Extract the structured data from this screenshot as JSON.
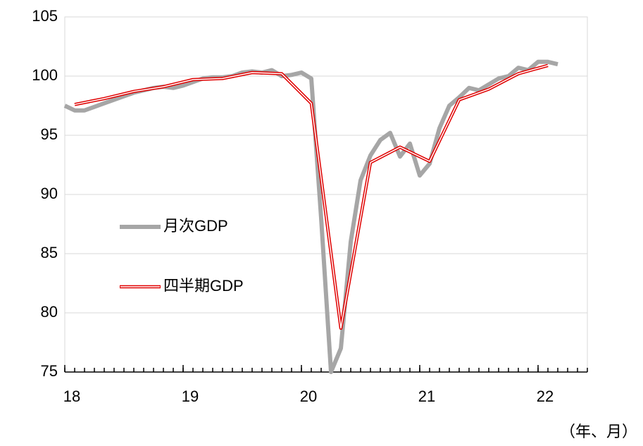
{
  "chart_data": {
    "type": "line",
    "unit_note": "（年、月）",
    "xlim": [
      0,
      53
    ],
    "xticks": [
      {
        "value": 0,
        "label": "18"
      },
      {
        "value": 12,
        "label": "19"
      },
      {
        "value": 24,
        "label": "20"
      },
      {
        "value": 36,
        "label": "21"
      },
      {
        "value": 48,
        "label": "22"
      }
    ],
    "ylim": [
      75,
      105
    ],
    "yticks": [
      75,
      80,
      85,
      90,
      95,
      100,
      105
    ],
    "grid": true,
    "series": [
      {
        "name": "月次GDP",
        "color": "#a6a6a6",
        "x": [
          0,
          1,
          2,
          3,
          4,
          5,
          6,
          7,
          8,
          9,
          10,
          11,
          12,
          13,
          14,
          15,
          16,
          17,
          18,
          19,
          20,
          21,
          22,
          23,
          24,
          25,
          26,
          27,
          28,
          29,
          30,
          31,
          32,
          33,
          34,
          35,
          36,
          37,
          38,
          39,
          40,
          41,
          42,
          43,
          44,
          45,
          46,
          47,
          48,
          49,
          50
        ],
        "values": [
          97.5,
          97.1,
          97.1,
          97.4,
          97.7,
          98.0,
          98.3,
          98.6,
          98.8,
          99.0,
          99.1,
          99.0,
          99.2,
          99.5,
          99.8,
          99.9,
          99.9,
          100.0,
          100.3,
          100.4,
          100.3,
          100.5,
          100.0,
          100.1,
          100.3,
          99.8,
          88,
          75,
          77,
          86,
          91.2,
          93.3,
          94.6,
          95.2,
          93.2,
          94.3,
          91.6,
          92.6,
          95.6,
          97.5,
          98.2,
          99.0,
          98.8,
          99.3,
          99.8,
          100.0,
          100.7,
          100.5,
          101.2,
          101.2,
          101.0
        ]
      },
      {
        "name": "四半期GDP",
        "color": "#e00000",
        "x": [
          1,
          4,
          7,
          10,
          13,
          16,
          19,
          22,
          25,
          28,
          31,
          34,
          37,
          40,
          43,
          46,
          49
        ],
        "values": [
          97.6,
          98.1,
          98.7,
          99.1,
          99.7,
          99.8,
          100.3,
          100.2,
          97.7,
          78.7,
          92.7,
          94.0,
          92.8,
          98.0,
          98.9,
          100.2,
          100.9
        ]
      }
    ]
  }
}
